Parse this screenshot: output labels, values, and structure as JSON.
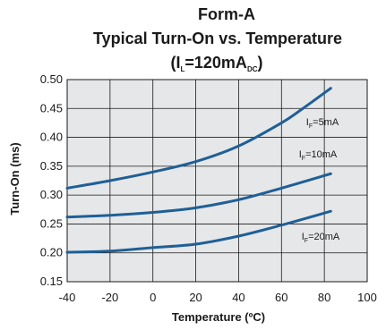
{
  "chart_data": {
    "type": "line",
    "title": {
      "line1": "Form-A",
      "line2": "Typical Turn-On vs. Temperature",
      "line3": {
        "open": "(I",
        "sub1": "L",
        "mid": "=120mA",
        "sub2": "DC",
        "close": ")"
      }
    },
    "xlabel": "Temperature (ºC)",
    "ylabel": "Turn-On (ms)",
    "xlim": [
      -40,
      100
    ],
    "ylim": [
      0.15,
      0.5
    ],
    "xticks": [
      "-40",
      "-20",
      "0",
      "20",
      "40",
      "60",
      "80",
      "100"
    ],
    "yticks": [
      "0.50",
      "0.45",
      "0.40",
      "0.35",
      "0.30",
      "0.25",
      "0.20",
      "0.15"
    ],
    "grid": true,
    "series": [
      {
        "label": {
          "main": "I",
          "sub": "F",
          "rest": "=5mA"
        },
        "points": [
          [
            -40,
            0.312
          ],
          [
            -20,
            0.325
          ],
          [
            0,
            0.34
          ],
          [
            20,
            0.358
          ],
          [
            40,
            0.385
          ],
          [
            60,
            0.425
          ],
          [
            70,
            0.45
          ],
          [
            83,
            0.485
          ]
        ]
      },
      {
        "label": {
          "main": "I",
          "sub": "F",
          "rest": "=10mA"
        },
        "points": [
          [
            -40,
            0.262
          ],
          [
            -20,
            0.265
          ],
          [
            0,
            0.27
          ],
          [
            20,
            0.278
          ],
          [
            40,
            0.292
          ],
          [
            60,
            0.312
          ],
          [
            83,
            0.337
          ]
        ]
      },
      {
        "label": {
          "main": "I",
          "sub": "F",
          "rest": "=20mA"
        },
        "points": [
          [
            -40,
            0.201
          ],
          [
            -20,
            0.203
          ],
          [
            0,
            0.209
          ],
          [
            20,
            0.215
          ],
          [
            40,
            0.229
          ],
          [
            60,
            0.248
          ],
          [
            83,
            0.272
          ]
        ]
      }
    ],
    "line_color": "#1f5f96",
    "grid_color": "#1a1a1a",
    "plot_bg": "#e6e7e8"
  }
}
